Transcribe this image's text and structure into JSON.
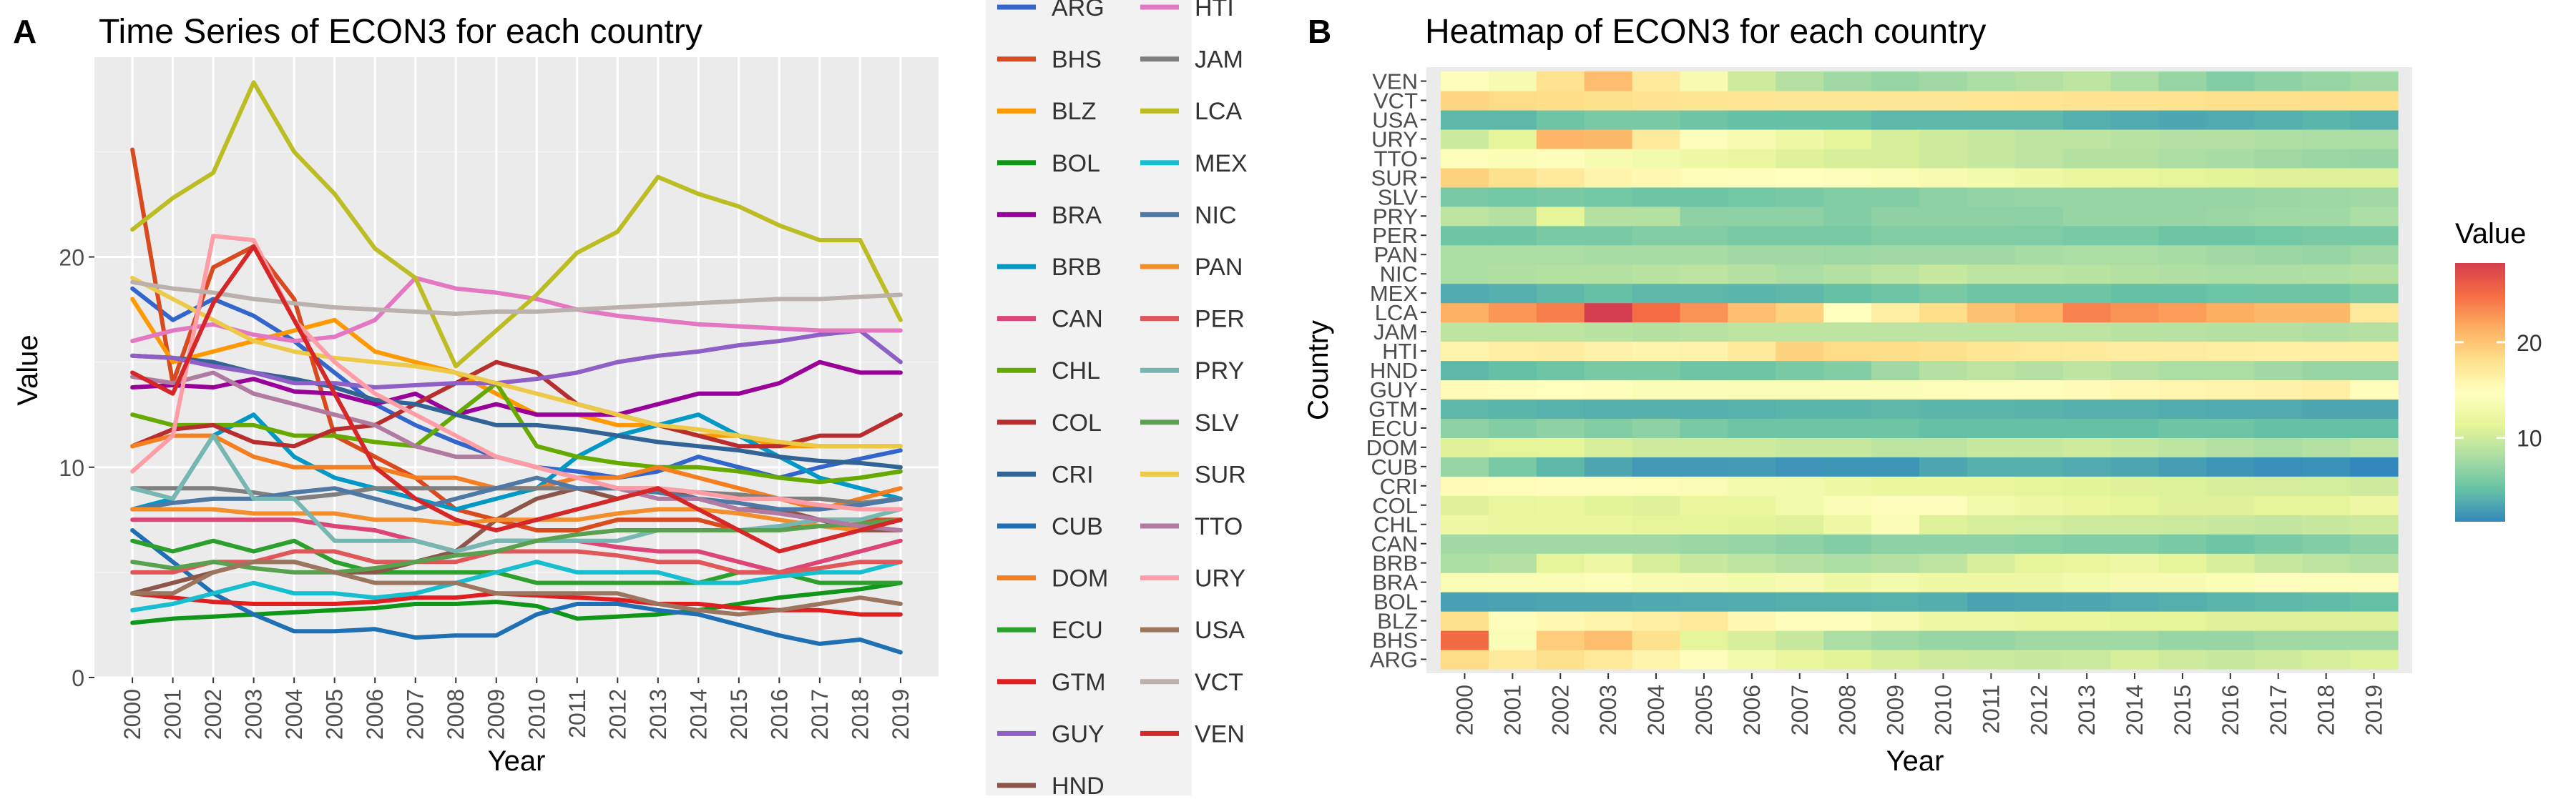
{
  "panels": {
    "a_tag": "A",
    "b_tag": "B"
  },
  "chart_data": [
    {
      "type": "line",
      "title": "Time Series of ECON3 for each country",
      "xlabel": "Year",
      "ylabel": "Value",
      "x": [
        2000,
        2001,
        2002,
        2003,
        2004,
        2005,
        2006,
        2007,
        2008,
        2009,
        2010,
        2011,
        2012,
        2013,
        2014,
        2015,
        2016,
        2017,
        2018,
        2019
      ],
      "x_ticks": [
        "2000",
        "2001",
        "2002",
        "2003",
        "2004",
        "2005",
        "2006",
        "2007",
        "2008",
        "2009",
        "2010",
        "2011",
        "2012",
        "2013",
        "2014",
        "2015",
        "2016",
        "2017",
        "2018",
        "2019"
      ],
      "ylim": [
        0,
        29.5
      ],
      "y_ticks": [
        0,
        10,
        20
      ],
      "grid": true,
      "legend": "right",
      "series": [
        {
          "name": "ARG",
          "color": "#3366CC",
          "values": [
            18.5,
            17.0,
            18.0,
            17.2,
            16.0,
            14.5,
            13.0,
            12.0,
            11.2,
            10.5,
            10.0,
            9.8,
            9.5,
            9.8,
            10.5,
            10.0,
            9.5,
            10.0,
            10.4,
            10.8
          ]
        },
        {
          "name": "BHS",
          "color": "#D94A1F",
          "values": [
            25.1,
            14.0,
            19.5,
            20.5,
            18.0,
            11.5,
            10.5,
            9.5,
            8.0,
            7.5,
            7.0,
            7.0,
            7.5,
            7.5,
            7.5,
            7.0,
            7.0,
            7.5,
            7.5,
            7.5
          ]
        },
        {
          "name": "BLZ",
          "color": "#FF9900",
          "values": [
            18.0,
            15.0,
            15.5,
            16.0,
            16.5,
            17.0,
            15.5,
            15.0,
            14.5,
            13.5,
            12.5,
            12.5,
            12.0,
            12.0,
            11.5,
            11.5,
            11.0,
            11.0,
            11.0,
            11.0
          ]
        },
        {
          "name": "BOL",
          "color": "#109618",
          "values": [
            2.6,
            2.8,
            2.9,
            3.0,
            3.1,
            3.2,
            3.3,
            3.5,
            3.5,
            3.6,
            3.4,
            2.8,
            2.9,
            3.0,
            3.2,
            3.5,
            3.8,
            4.0,
            4.2,
            4.5
          ]
        },
        {
          "name": "BRA",
          "color": "#990099",
          "values": [
            13.8,
            13.9,
            13.8,
            14.2,
            13.6,
            13.5,
            13.0,
            13.5,
            12.5,
            13.0,
            12.5,
            12.5,
            12.5,
            13.0,
            13.5,
            13.5,
            14.0,
            15.0,
            14.5,
            14.5
          ]
        },
        {
          "name": "BRB",
          "color": "#0099C6",
          "values": [
            8.0,
            8.5,
            11.5,
            12.5,
            10.5,
            9.5,
            9.0,
            8.5,
            8.0,
            8.5,
            9.0,
            10.5,
            11.5,
            12.0,
            12.5,
            11.5,
            10.5,
            9.5,
            9.0,
            8.5
          ]
        },
        {
          "name": "CAN",
          "color": "#DD4477",
          "values": [
            7.5,
            7.5,
            7.5,
            7.5,
            7.5,
            7.2,
            7.0,
            6.5,
            6.0,
            6.5,
            6.5,
            6.5,
            6.2,
            6.0,
            6.0,
            5.5,
            5.0,
            5.5,
            6.0,
            6.5
          ]
        },
        {
          "name": "CHL",
          "color": "#66AA00",
          "values": [
            12.5,
            12.0,
            12.0,
            12.0,
            11.5,
            11.5,
            11.2,
            11.0,
            12.5,
            14.0,
            11.0,
            10.5,
            10.2,
            10.0,
            10.0,
            9.8,
            9.5,
            9.3,
            9.5,
            9.8
          ]
        },
        {
          "name": "COL",
          "color": "#B82E2E",
          "values": [
            11.0,
            11.8,
            12.0,
            11.2,
            11.0,
            11.8,
            12.0,
            13.0,
            14.0,
            15.0,
            14.5,
            13.0,
            12.5,
            12.0,
            11.5,
            11.0,
            11.0,
            11.5,
            11.5,
            12.5
          ]
        },
        {
          "name": "CRI",
          "color": "#316395",
          "values": [
            15.3,
            15.2,
            15.0,
            14.5,
            14.2,
            13.8,
            13.2,
            13.0,
            12.5,
            12.0,
            12.0,
            11.8,
            11.5,
            11.2,
            11.0,
            10.8,
            10.5,
            10.3,
            10.2,
            10.0
          ]
        },
        {
          "name": "CUB",
          "color": "#1F6FB4",
          "values": [
            7.0,
            5.5,
            4.0,
            3.0,
            2.2,
            2.2,
            2.3,
            1.9,
            2.0,
            2.0,
            3.0,
            3.5,
            3.5,
            3.2,
            3.0,
            2.5,
            2.0,
            1.6,
            1.8,
            1.2
          ]
        },
        {
          "name": "DOM",
          "color": "#F57E20",
          "values": [
            11.0,
            11.5,
            11.5,
            10.5,
            10.0,
            10.0,
            10.0,
            9.5,
            9.5,
            9.0,
            9.0,
            9.5,
            9.5,
            10.0,
            9.5,
            9.0,
            8.5,
            8.0,
            8.5,
            9.0
          ]
        },
        {
          "name": "ECU",
          "color": "#2CA02C",
          "values": [
            6.5,
            6.0,
            6.5,
            6.0,
            6.5,
            5.5,
            5.0,
            5.0,
            5.0,
            5.0,
            4.5,
            4.5,
            4.5,
            4.5,
            4.5,
            5.0,
            5.0,
            4.5,
            4.5,
            4.5
          ]
        },
        {
          "name": "GTM",
          "color": "#E02020",
          "values": [
            4.0,
            3.8,
            3.6,
            3.5,
            3.5,
            3.5,
            3.6,
            3.8,
            3.8,
            4.0,
            3.9,
            3.8,
            3.7,
            3.5,
            3.5,
            3.3,
            3.2,
            3.2,
            3.0,
            3.0
          ]
        },
        {
          "name": "GUY",
          "color": "#8E5FC4",
          "values": [
            15.3,
            15.2,
            14.8,
            14.5,
            14.0,
            14.0,
            13.8,
            13.9,
            14.0,
            14.0,
            14.2,
            14.5,
            15.0,
            15.3,
            15.5,
            15.8,
            16.0,
            16.3,
            16.5,
            15.0
          ]
        },
        {
          "name": "HND",
          "color": "#8C564B",
          "values": [
            4.0,
            4.5,
            5.0,
            5.5,
            5.5,
            5.0,
            5.0,
            5.5,
            6.0,
            7.5,
            8.5,
            9.0,
            8.5,
            9.0,
            8.5,
            8.0,
            8.0,
            7.5,
            7.0,
            7.0
          ]
        },
        {
          "name": "HTI",
          "color": "#E377C2",
          "values": [
            16.0,
            16.5,
            16.8,
            16.3,
            16.0,
            16.2,
            17.0,
            19.0,
            18.5,
            18.3,
            18.0,
            17.5,
            17.2,
            17.0,
            16.8,
            16.7,
            16.6,
            16.5,
            16.5,
            16.5
          ]
        },
        {
          "name": "JAM",
          "color": "#7F7F7F",
          "values": [
            9.0,
            9.0,
            9.0,
            8.8,
            8.5,
            8.7,
            9.0,
            9.0,
            9.0,
            9.0,
            9.0,
            9.0,
            9.0,
            9.0,
            8.8,
            8.7,
            8.5,
            8.5,
            8.3,
            8.5
          ]
        },
        {
          "name": "LCA",
          "color": "#BCBD22",
          "values": [
            21.3,
            22.8,
            24.0,
            28.3,
            25.0,
            23.0,
            20.4,
            19.0,
            14.8,
            16.5,
            18.2,
            20.2,
            21.2,
            23.8,
            23.0,
            22.4,
            21.5,
            20.8,
            20.8,
            17.0
          ]
        },
        {
          "name": "MEX",
          "color": "#17BECF",
          "values": [
            3.2,
            3.5,
            4.0,
            4.5,
            4.0,
            4.0,
            3.8,
            4.0,
            4.5,
            5.0,
            5.5,
            5.0,
            5.0,
            5.0,
            4.5,
            4.5,
            4.8,
            5.0,
            5.0,
            5.5
          ]
        },
        {
          "name": "NIC",
          "color": "#4E79A7",
          "values": [
            8.0,
            8.3,
            8.5,
            8.5,
            8.8,
            9.0,
            8.5,
            8.0,
            8.5,
            9.0,
            9.5,
            9.0,
            9.0,
            8.8,
            8.5,
            8.3,
            8.0,
            8.0,
            8.2,
            8.5
          ]
        },
        {
          "name": "PAN",
          "color": "#F28E2B",
          "values": [
            8.0,
            8.0,
            8.0,
            7.8,
            7.8,
            7.8,
            7.5,
            7.5,
            7.3,
            7.5,
            7.5,
            7.5,
            7.8,
            8.0,
            8.0,
            7.8,
            7.5,
            7.2,
            7.0,
            7.5
          ]
        },
        {
          "name": "PER",
          "color": "#E15759",
          "values": [
            5.0,
            5.0,
            5.5,
            5.5,
            6.0,
            6.0,
            5.5,
            5.5,
            5.5,
            6.0,
            6.0,
            6.0,
            5.8,
            5.5,
            5.5,
            5.0,
            5.0,
            5.2,
            5.5,
            5.5
          ]
        },
        {
          "name": "PRY",
          "color": "#76B7B2",
          "values": [
            9.0,
            8.5,
            11.5,
            8.5,
            8.5,
            6.5,
            6.5,
            6.5,
            6.0,
            6.5,
            6.5,
            6.5,
            6.5,
            7.0,
            7.0,
            7.0,
            7.2,
            7.5,
            7.5,
            8.0
          ]
        },
        {
          "name": "SLV",
          "color": "#59A14F",
          "values": [
            5.5,
            5.2,
            5.5,
            5.2,
            5.0,
            5.0,
            5.2,
            5.5,
            5.8,
            6.0,
            6.5,
            6.8,
            7.0,
            7.0,
            7.0,
            7.0,
            7.0,
            7.2,
            7.3,
            7.5
          ]
        },
        {
          "name": "SUR",
          "color": "#EDC948",
          "values": [
            19.0,
            18.0,
            17.0,
            16.0,
            15.5,
            15.2,
            15.0,
            14.8,
            14.5,
            14.0,
            13.5,
            13.0,
            12.5,
            12.0,
            11.8,
            11.5,
            11.2,
            11.0,
            11.0,
            11.0
          ]
        },
        {
          "name": "TTO",
          "color": "#B07AA1",
          "values": [
            14.3,
            14.0,
            14.5,
            13.5,
            13.0,
            12.5,
            12.0,
            11.0,
            10.5,
            10.5,
            10.0,
            9.5,
            9.0,
            8.5,
            8.5,
            8.0,
            7.8,
            7.5,
            7.2,
            7.0
          ]
        },
        {
          "name": "URY",
          "color": "#FF9DA7",
          "values": [
            9.8,
            11.5,
            21.0,
            20.8,
            17.0,
            15.0,
            13.5,
            12.5,
            11.5,
            10.5,
            10.0,
            9.5,
            9.0,
            9.0,
            8.8,
            8.5,
            8.5,
            8.2,
            8.0,
            8.0
          ]
        },
        {
          "name": "USA",
          "color": "#9C755F",
          "values": [
            4.0,
            4.0,
            5.0,
            5.5,
            5.5,
            5.0,
            4.5,
            4.5,
            4.5,
            4.0,
            4.0,
            4.0,
            4.0,
            3.5,
            3.2,
            3.0,
            3.2,
            3.5,
            3.8,
            3.5
          ]
        },
        {
          "name": "VCT",
          "color": "#BAB0AC",
          "values": [
            18.8,
            18.5,
            18.3,
            18.0,
            17.8,
            17.6,
            17.5,
            17.4,
            17.3,
            17.4,
            17.4,
            17.5,
            17.6,
            17.7,
            17.8,
            17.9,
            18.0,
            18.0,
            18.1,
            18.2
          ]
        },
        {
          "name": "VEN",
          "color": "#D62728",
          "values": [
            14.5,
            13.5,
            17.8,
            20.5,
            17.0,
            13.5,
            10.0,
            8.5,
            7.5,
            7.0,
            7.5,
            8.0,
            8.5,
            9.0,
            8.0,
            7.0,
            6.0,
            6.5,
            7.0,
            7.5
          ]
        }
      ]
    },
    {
      "type": "heatmap",
      "title": "Heatmap of ECON3 for each country",
      "xlabel": "Year",
      "ylabel": "Country",
      "x_ticks": [
        "2000",
        "2001",
        "2002",
        "2003",
        "2004",
        "2005",
        "2006",
        "2007",
        "2008",
        "2009",
        "2010",
        "2011",
        "2012",
        "2013",
        "2014",
        "2015",
        "2016",
        "2017",
        "2018",
        "2019"
      ],
      "y_categories": [
        "ARG",
        "BHS",
        "BLZ",
        "BOL",
        "BRA",
        "BRB",
        "CAN",
        "CHL",
        "COL",
        "CRI",
        "CUB",
        "DOM",
        "ECU",
        "GTM",
        "GUY",
        "HND",
        "HTI",
        "JAM",
        "LCA",
        "MEX",
        "NIC",
        "PAN",
        "PER",
        "PRY",
        "SLV",
        "SUR",
        "TTO",
        "URY",
        "USA",
        "VCT",
        "VEN"
      ],
      "scale": {
        "title": "Value",
        "ticks": [
          10,
          20
        ],
        "min": 1.2,
        "max": 28.3,
        "colors": [
          "#3288BD",
          "#66C2A5",
          "#ABDDA4",
          "#E6F598",
          "#FFFFBF",
          "#FEE08B",
          "#FDAE61",
          "#F46D43",
          "#D53E4F"
        ]
      },
      "legend": "right"
    }
  ]
}
